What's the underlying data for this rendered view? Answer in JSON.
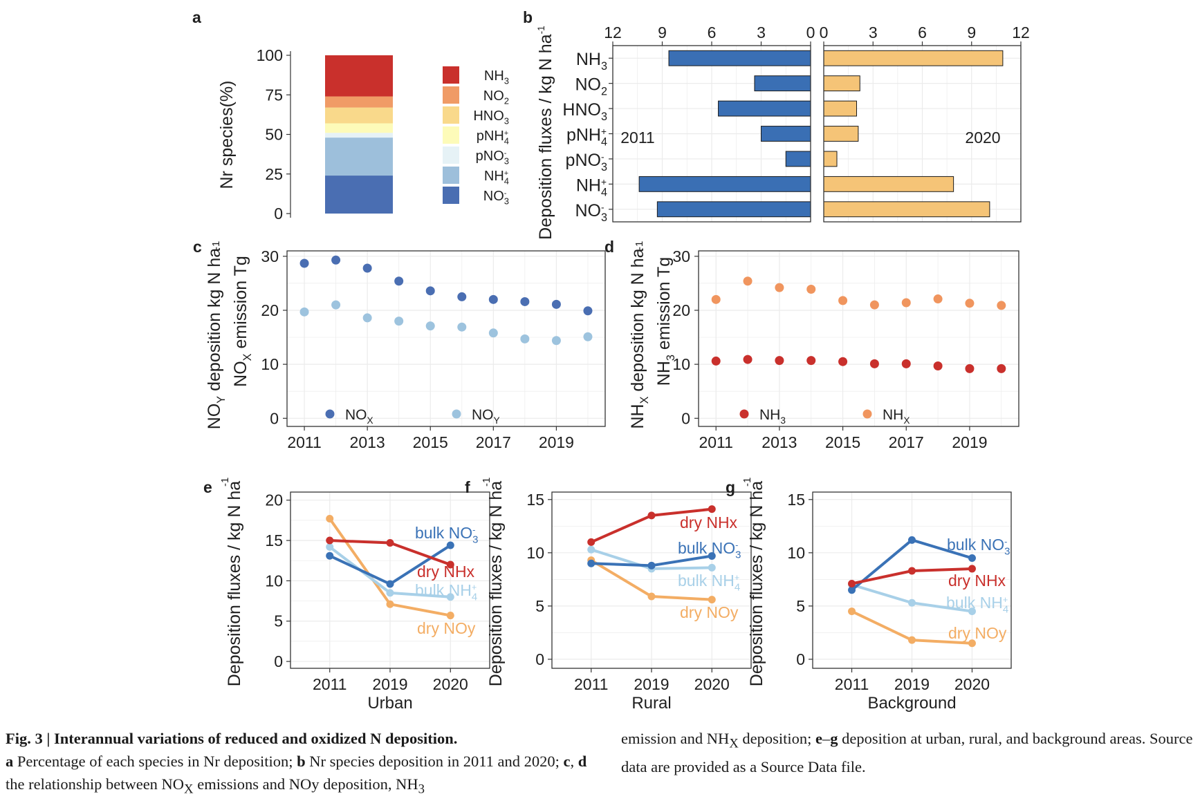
{
  "chart_data": [
    {
      "panel": "a",
      "type": "bar",
      "stacked": true,
      "ylabel": "Nr species(%)",
      "yticks": [
        "0",
        "25",
        "50",
        "75",
        "100"
      ],
      "ylim": [
        0,
        100
      ],
      "series": [
        {
          "name": "NO3-",
          "value": 24,
          "color": "#4a6eb2"
        },
        {
          "name": "NH4+",
          "value": 24,
          "color": "#9dbfdb"
        },
        {
          "name": "pNO3-",
          "value": 3,
          "color": "#e6f2f6"
        },
        {
          "name": "pNH4+",
          "value": 6,
          "color": "#fdfbb9"
        },
        {
          "name": "HNO3",
          "value": 10,
          "color": "#f9d98b"
        },
        {
          "name": "NO2",
          "value": 7,
          "color": "#f09b66"
        },
        {
          "name": "NH3",
          "value": 26,
          "color": "#c9302c"
        }
      ],
      "legend_position": "right"
    },
    {
      "panel": "b",
      "type": "bar",
      "orientation": "horizontal",
      "ylabel": "Deposition fluxes / kg N ha-1",
      "categories": [
        "NH3",
        "NO2",
        "HNO3",
        "pNH4+",
        "pNO3-",
        "NH4+",
        "NO3-"
      ],
      "xticks_left": [
        "12",
        "9",
        "6",
        "3",
        "0"
      ],
      "xticks_right": [
        "0",
        "3",
        "6",
        "9",
        "12"
      ],
      "xlim": [
        0,
        12
      ],
      "series": [
        {
          "name": "2011",
          "values": [
            8.6,
            3.4,
            5.6,
            3.0,
            1.5,
            10.4,
            9.3
          ],
          "color": "#3a6fb4"
        },
        {
          "name": "2020",
          "values": [
            10.9,
            2.2,
            2.0,
            2.1,
            0.8,
            7.9,
            10.1
          ],
          "color": "#f5c477"
        }
      ]
    },
    {
      "panel": "c",
      "type": "scatter",
      "xticks": [
        "2011",
        "2013",
        "2015",
        "2017",
        "2019"
      ],
      "yticks": [
        "0",
        "10",
        "20",
        "30"
      ],
      "ylim": [
        0,
        31
      ],
      "x": [
        2011,
        2012,
        2013,
        2014,
        2015,
        2016,
        2017,
        2018,
        2019,
        2020
      ],
      "series": [
        {
          "name": "NOX emission",
          "values": [
            28.7,
            29.3,
            27.8,
            25.4,
            23.6,
            22.5,
            22.0,
            21.6,
            21.1,
            19.9
          ],
          "color": "#4a6eb2"
        },
        {
          "name": "NOY deposition",
          "values": [
            19.7,
            21.0,
            18.6,
            18.0,
            17.1,
            16.9,
            15.8,
            14.7,
            14.4,
            15.1
          ],
          "color": "#9dc3de"
        }
      ],
      "legend_position": "bottom"
    },
    {
      "panel": "d",
      "type": "scatter",
      "xticks": [
        "2011",
        "2013",
        "2015",
        "2017",
        "2019"
      ],
      "yticks": [
        "0",
        "10",
        "20",
        "30"
      ],
      "ylim": [
        0,
        31
      ],
      "x": [
        2011,
        2012,
        2013,
        2014,
        2015,
        2016,
        2017,
        2018,
        2019,
        2020
      ],
      "series": [
        {
          "name": "NH3 emission",
          "values": [
            10.6,
            10.9,
            10.7,
            10.7,
            10.5,
            10.1,
            10.1,
            9.7,
            9.2,
            9.2
          ],
          "color": "#c9302c"
        },
        {
          "name": "NHX deposition",
          "values": [
            22.0,
            25.4,
            24.2,
            23.9,
            21.8,
            21.0,
            21.4,
            22.1,
            21.3,
            20.9
          ],
          "color": "#f0955e"
        }
      ],
      "legend_position": "bottom"
    },
    {
      "panel": "e",
      "type": "line",
      "xlabel": "Urban",
      "ylabel": "Deposition fluxes / kg N ha-1",
      "categories": [
        "2011",
        "2019",
        "2020"
      ],
      "yticks": [
        "0",
        "5",
        "10",
        "15",
        "20"
      ],
      "ylim": [
        0,
        21
      ],
      "series": [
        {
          "name": "dry NHx",
          "values": [
            15.0,
            14.7,
            12.0
          ],
          "color": "#c9302c"
        },
        {
          "name": "bulk NO3-",
          "values": [
            13.1,
            9.6,
            14.4
          ],
          "color": "#3a72b6"
        },
        {
          "name": "bulk NH4+",
          "values": [
            14.2,
            8.5,
            8.0
          ],
          "color": "#a8d0e8"
        },
        {
          "name": "dry NOy",
          "values": [
            17.7,
            7.1,
            5.7
          ],
          "color": "#f3ad64"
        }
      ]
    },
    {
      "panel": "f",
      "type": "line",
      "xlabel": "Rural",
      "ylabel": "Deposition fluxes / kg N ha-1",
      "categories": [
        "2011",
        "2019",
        "2020"
      ],
      "yticks": [
        "0",
        "5",
        "10",
        "15"
      ],
      "ylim": [
        0,
        15.7
      ],
      "series": [
        {
          "name": "dry NHx",
          "values": [
            11.0,
            13.5,
            14.1
          ],
          "color": "#c9302c"
        },
        {
          "name": "bulk NO3-",
          "values": [
            9.0,
            8.8,
            9.7
          ],
          "color": "#3a72b6"
        },
        {
          "name": "bulk NH4+",
          "values": [
            10.3,
            8.5,
            8.6
          ],
          "color": "#a8d0e8"
        },
        {
          "name": "dry NOy",
          "values": [
            9.3,
            5.9,
            5.6
          ],
          "color": "#f3ad64"
        }
      ]
    },
    {
      "panel": "g",
      "type": "line",
      "xlabel": "Background",
      "ylabel": "Deposition fluxes / kg N ha-1",
      "categories": [
        "2011",
        "2019",
        "2020"
      ],
      "yticks": [
        "0",
        "5",
        "10",
        "15"
      ],
      "ylim": [
        0,
        15.7
      ],
      "series": [
        {
          "name": "dry NHx",
          "values": [
            7.1,
            8.3,
            8.5
          ],
          "color": "#c9302c"
        },
        {
          "name": "bulk NO3-",
          "values": [
            6.5,
            11.2,
            9.5
          ],
          "color": "#3a72b6"
        },
        {
          "name": "bulk NH4+",
          "values": [
            7.0,
            5.3,
            4.5
          ],
          "color": "#a8d0e8"
        },
        {
          "name": "dry NOy",
          "values": [
            4.5,
            1.8,
            1.5
          ],
          "color": "#f3ad64"
        }
      ]
    }
  ],
  "caption": {
    "fig_label": "Fig. 3 | Interannual variations of reduced and oxidized N deposition.",
    "a_label": "a",
    "a_text": " Percentage of each species in Nr deposition; ",
    "b_label": "b",
    "b_text": " Nr species deposition in 2011 and 2020; ",
    "cd_label": "c, d",
    "cd_text": " the relationship between NOX emissions and NOy deposition, NH3 emission and NHX deposition; ",
    "eg_label": "e–g",
    "eg_text": " deposition at urban, rural, and background areas. Source data are provided as a Source Data file."
  }
}
